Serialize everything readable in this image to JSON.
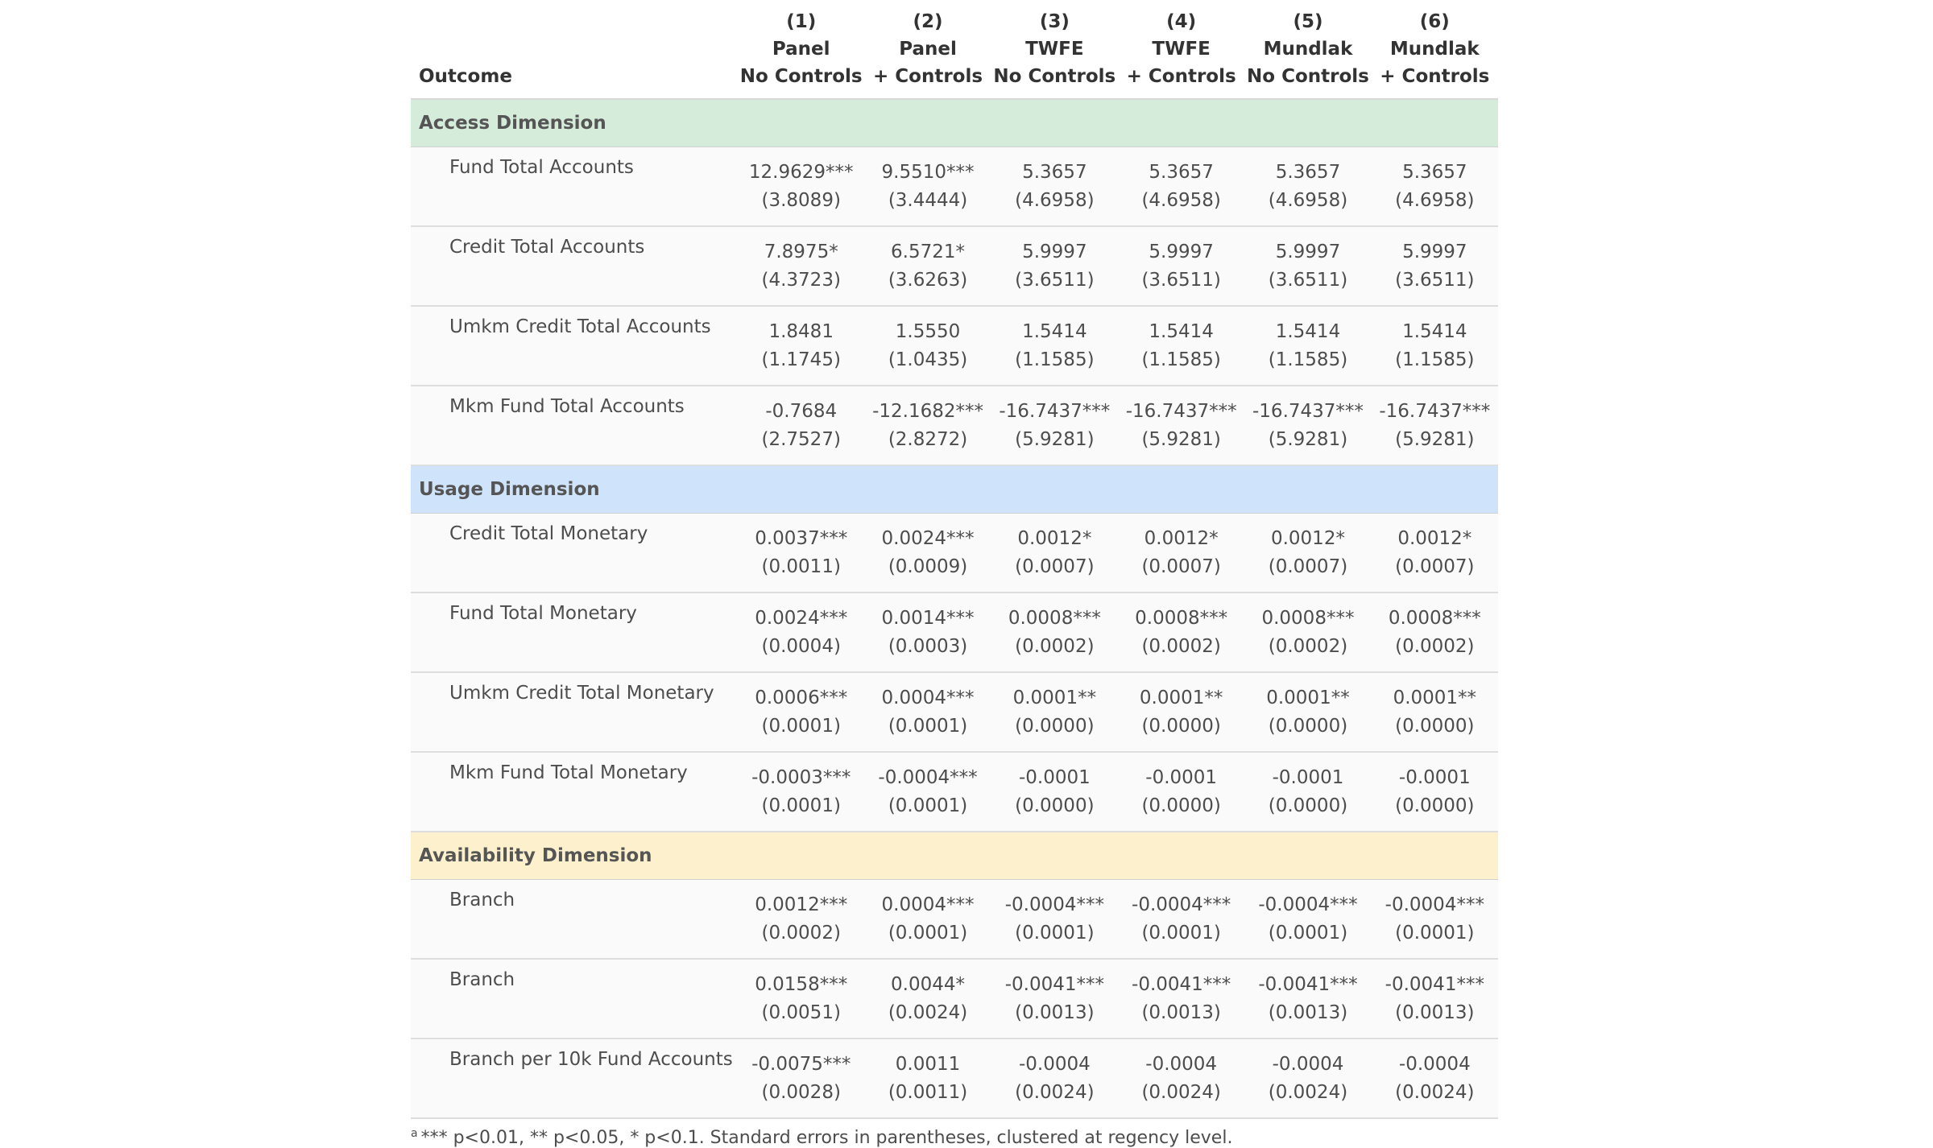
{
  "header": {
    "outcome": "Outcome",
    "columns": [
      {
        "num": "(1)",
        "model": "Panel",
        "spec": "No Controls"
      },
      {
        "num": "(2)",
        "model": "Panel",
        "spec": "+ Controls"
      },
      {
        "num": "(3)",
        "model": "TWFE",
        "spec": "No Controls"
      },
      {
        "num": "(4)",
        "model": "TWFE",
        "spec": "+ Controls"
      },
      {
        "num": "(5)",
        "model": "Mundlak",
        "spec": "No Controls"
      },
      {
        "num": "(6)",
        "model": "Mundlak",
        "spec": "+ Controls"
      }
    ]
  },
  "groups": [
    {
      "title": "Access Dimension",
      "rows": [
        {
          "label": "Fund Total Accounts",
          "cells": [
            [
              "12.9629***",
              "(3.8089)"
            ],
            [
              "9.5510***",
              "(3.4444)"
            ],
            [
              "5.3657",
              "(4.6958)"
            ],
            [
              "5.3657",
              "(4.6958)"
            ],
            [
              "5.3657",
              "(4.6958)"
            ],
            [
              "5.3657",
              "(4.6958)"
            ]
          ]
        },
        {
          "label": "Credit Total Accounts",
          "cells": [
            [
              "7.8975*",
              "(4.3723)"
            ],
            [
              "6.5721*",
              "(3.6263)"
            ],
            [
              "5.9997",
              "(3.6511)"
            ],
            [
              "5.9997",
              "(3.6511)"
            ],
            [
              "5.9997",
              "(3.6511)"
            ],
            [
              "5.9997",
              "(3.6511)"
            ]
          ]
        },
        {
          "label": "Umkm Credit Total Accounts",
          "cells": [
            [
              "1.8481",
              "(1.1745)"
            ],
            [
              "1.5550",
              "(1.0435)"
            ],
            [
              "1.5414",
              "(1.1585)"
            ],
            [
              "1.5414",
              "(1.1585)"
            ],
            [
              "1.5414",
              "(1.1585)"
            ],
            [
              "1.5414",
              "(1.1585)"
            ]
          ]
        },
        {
          "label": "Mkm Fund Total Accounts",
          "cells": [
            [
              "-0.7684",
              "(2.7527)"
            ],
            [
              "-12.1682***",
              "(2.8272)"
            ],
            [
              "-16.7437***",
              "(5.9281)"
            ],
            [
              "-16.7437***",
              "(5.9281)"
            ],
            [
              "-16.7437***",
              "(5.9281)"
            ],
            [
              "-16.7437***",
              "(5.9281)"
            ]
          ]
        }
      ]
    },
    {
      "title": "Usage Dimension",
      "rows": [
        {
          "label": "Credit Total Monetary",
          "cells": [
            [
              "0.0037***",
              "(0.0011)"
            ],
            [
              "0.0024***",
              "(0.0009)"
            ],
            [
              "0.0012*",
              "(0.0007)"
            ],
            [
              "0.0012*",
              "(0.0007)"
            ],
            [
              "0.0012*",
              "(0.0007)"
            ],
            [
              "0.0012*",
              "(0.0007)"
            ]
          ]
        },
        {
          "label": "Fund Total Monetary",
          "cells": [
            [
              "0.0024***",
              "(0.0004)"
            ],
            [
              "0.0014***",
              "(0.0003)"
            ],
            [
              "0.0008***",
              "(0.0002)"
            ],
            [
              "0.0008***",
              "(0.0002)"
            ],
            [
              "0.0008***",
              "(0.0002)"
            ],
            [
              "0.0008***",
              "(0.0002)"
            ]
          ]
        },
        {
          "label": "Umkm Credit Total Monetary",
          "cells": [
            [
              "0.0006***",
              "(0.0001)"
            ],
            [
              "0.0004***",
              "(0.0001)"
            ],
            [
              "0.0001**",
              "(0.0000)"
            ],
            [
              "0.0001**",
              "(0.0000)"
            ],
            [
              "0.0001**",
              "(0.0000)"
            ],
            [
              "0.0001**",
              "(0.0000)"
            ]
          ]
        },
        {
          "label": "Mkm Fund Total Monetary",
          "cells": [
            [
              "-0.0003***",
              "(0.0001)"
            ],
            [
              "-0.0004***",
              "(0.0001)"
            ],
            [
              "-0.0001",
              "(0.0000)"
            ],
            [
              "-0.0001",
              "(0.0000)"
            ],
            [
              "-0.0001",
              "(0.0000)"
            ],
            [
              "-0.0001",
              "(0.0000)"
            ]
          ]
        }
      ]
    },
    {
      "title": "Availability Dimension",
      "rows": [
        {
          "label": "Branch",
          "cells": [
            [
              "0.0012***",
              "(0.0002)"
            ],
            [
              "0.0004***",
              "(0.0001)"
            ],
            [
              "-0.0004***",
              "(0.0001)"
            ],
            [
              "-0.0004***",
              "(0.0001)"
            ],
            [
              "-0.0004***",
              "(0.0001)"
            ],
            [
              "-0.0004***",
              "(0.0001)"
            ]
          ]
        },
        {
          "label": "Branch",
          "cells": [
            [
              "0.0158***",
              "(0.0051)"
            ],
            [
              "0.0044*",
              "(0.0024)"
            ],
            [
              "-0.0041***",
              "(0.0013)"
            ],
            [
              "-0.0041***",
              "(0.0013)"
            ],
            [
              "-0.0041***",
              "(0.0013)"
            ],
            [
              "-0.0041***",
              "(0.0013)"
            ]
          ]
        },
        {
          "label": "Branch per 10k Fund Accounts",
          "cells": [
            [
              "-0.0075***",
              "(0.0028)"
            ],
            [
              "0.0011",
              "(0.0011)"
            ],
            [
              "-0.0004",
              "(0.0024)"
            ],
            [
              "-0.0004",
              "(0.0024)"
            ],
            [
              "-0.0004",
              "(0.0024)"
            ],
            [
              "-0.0004",
              "(0.0024)"
            ]
          ]
        }
      ]
    }
  ],
  "footnote": {
    "marker": "a",
    "text": "*** p<0.01, ** p<0.05, * p<0.1. Standard errors in parentheses, clustered at regency level."
  },
  "colors": {
    "access_band": "#d6ecdb",
    "usage_band": "#cfe4fb",
    "availability_band": "#fdf0cd"
  }
}
